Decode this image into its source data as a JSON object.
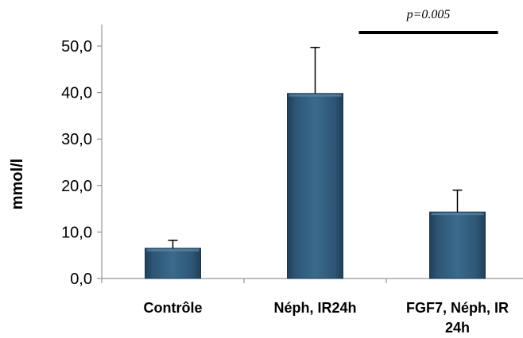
{
  "chart_data": {
    "type": "bar",
    "categories": [
      [
        "Contrôle"
      ],
      [
        "Néph, IR24h"
      ],
      [
        "FGF7, Néph, IR",
        "24h"
      ]
    ],
    "values": [
      6.5,
      39.8,
      14.3
    ],
    "errors": [
      1.7,
      9.9,
      4.7
    ],
    "ylabel": "mmol/l",
    "ylim": [
      0,
      55
    ],
    "yticks": [
      "0,0",
      "10,0",
      "20,0",
      "30,0",
      "40,0",
      "50,0"
    ],
    "ytick_values": [
      0,
      10,
      20,
      30,
      40,
      50
    ],
    "grid": false,
    "bar_color": "#2E5674",
    "annotation": {
      "text": "p=0.005",
      "from_category": 1,
      "to_category": 2
    }
  }
}
